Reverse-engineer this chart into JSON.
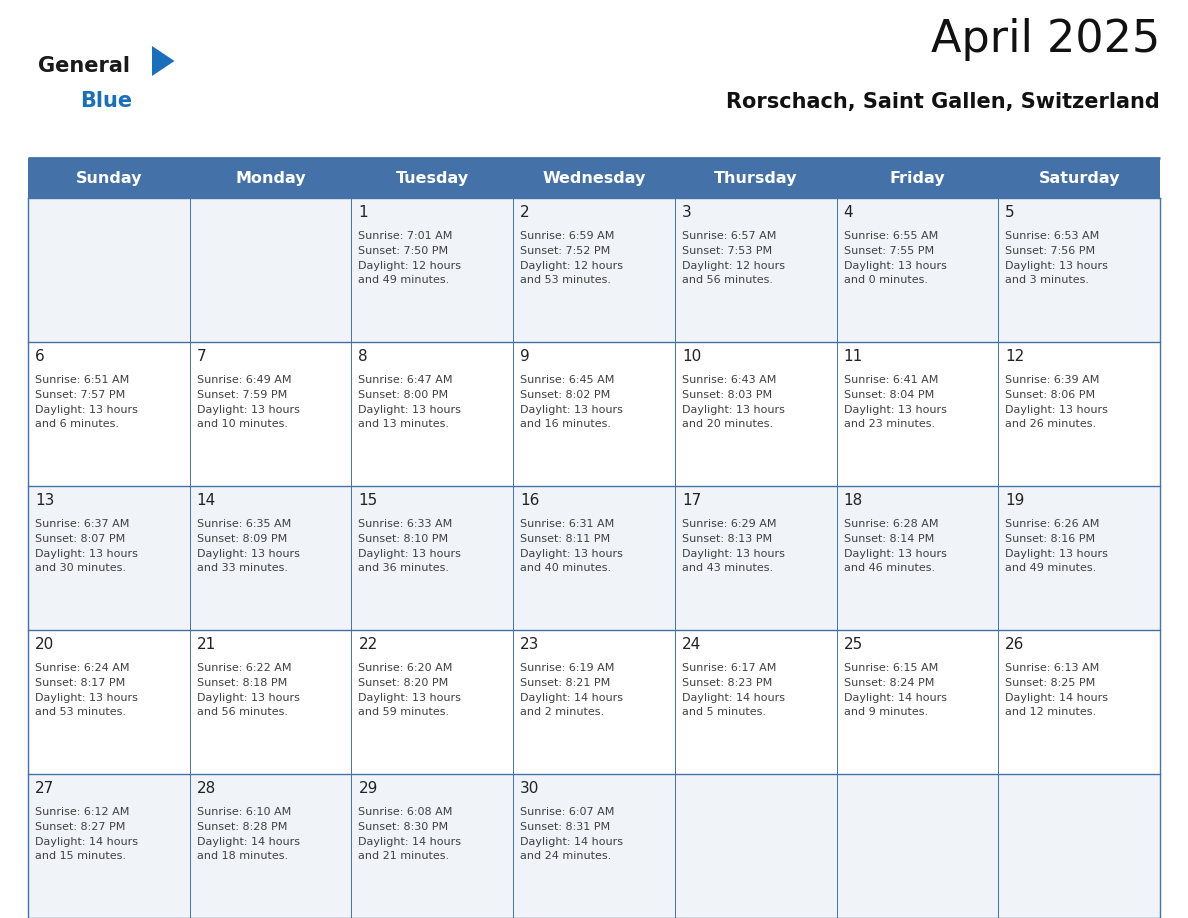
{
  "title": "April 2025",
  "subtitle": "Rorschach, Saint Gallen, Switzerland",
  "days_of_week": [
    "Sunday",
    "Monday",
    "Tuesday",
    "Wednesday",
    "Thursday",
    "Friday",
    "Saturday"
  ],
  "header_bg": "#4472a8",
  "header_text": "#ffffff",
  "cell_bg_odd": "#f0f4f8",
  "cell_bg_even": "#ffffff",
  "border_color": "#4472a8",
  "text_color": "#404040",
  "day_num_color": "#222222",
  "calendar": [
    [
      {
        "day": "",
        "sunrise": "",
        "sunset": "",
        "daylight_h": "",
        "daylight_m": ""
      },
      {
        "day": "",
        "sunrise": "",
        "sunset": "",
        "daylight_h": "",
        "daylight_m": ""
      },
      {
        "day": "1",
        "sunrise": "7:01 AM",
        "sunset": "7:50 PM",
        "daylight_h": "12",
        "daylight_m": "49"
      },
      {
        "day": "2",
        "sunrise": "6:59 AM",
        "sunset": "7:52 PM",
        "daylight_h": "12",
        "daylight_m": "53"
      },
      {
        "day": "3",
        "sunrise": "6:57 AM",
        "sunset": "7:53 PM",
        "daylight_h": "12",
        "daylight_m": "56"
      },
      {
        "day": "4",
        "sunrise": "6:55 AM",
        "sunset": "7:55 PM",
        "daylight_h": "13",
        "daylight_m": "0"
      },
      {
        "day": "5",
        "sunrise": "6:53 AM",
        "sunset": "7:56 PM",
        "daylight_h": "13",
        "daylight_m": "3"
      }
    ],
    [
      {
        "day": "6",
        "sunrise": "6:51 AM",
        "sunset": "7:57 PM",
        "daylight_h": "13",
        "daylight_m": "6"
      },
      {
        "day": "7",
        "sunrise": "6:49 AM",
        "sunset": "7:59 PM",
        "daylight_h": "13",
        "daylight_m": "10"
      },
      {
        "day": "8",
        "sunrise": "6:47 AM",
        "sunset": "8:00 PM",
        "daylight_h": "13",
        "daylight_m": "13"
      },
      {
        "day": "9",
        "sunrise": "6:45 AM",
        "sunset": "8:02 PM",
        "daylight_h": "13",
        "daylight_m": "16"
      },
      {
        "day": "10",
        "sunrise": "6:43 AM",
        "sunset": "8:03 PM",
        "daylight_h": "13",
        "daylight_m": "20"
      },
      {
        "day": "11",
        "sunrise": "6:41 AM",
        "sunset": "8:04 PM",
        "daylight_h": "13",
        "daylight_m": "23"
      },
      {
        "day": "12",
        "sunrise": "6:39 AM",
        "sunset": "8:06 PM",
        "daylight_h": "13",
        "daylight_m": "26"
      }
    ],
    [
      {
        "day": "13",
        "sunrise": "6:37 AM",
        "sunset": "8:07 PM",
        "daylight_h": "13",
        "daylight_m": "30"
      },
      {
        "day": "14",
        "sunrise": "6:35 AM",
        "sunset": "8:09 PM",
        "daylight_h": "13",
        "daylight_m": "33"
      },
      {
        "day": "15",
        "sunrise": "6:33 AM",
        "sunset": "8:10 PM",
        "daylight_h": "13",
        "daylight_m": "36"
      },
      {
        "day": "16",
        "sunrise": "6:31 AM",
        "sunset": "8:11 PM",
        "daylight_h": "13",
        "daylight_m": "40"
      },
      {
        "day": "17",
        "sunrise": "6:29 AM",
        "sunset": "8:13 PM",
        "daylight_h": "13",
        "daylight_m": "43"
      },
      {
        "day": "18",
        "sunrise": "6:28 AM",
        "sunset": "8:14 PM",
        "daylight_h": "13",
        "daylight_m": "46"
      },
      {
        "day": "19",
        "sunrise": "6:26 AM",
        "sunset": "8:16 PM",
        "daylight_h": "13",
        "daylight_m": "49"
      }
    ],
    [
      {
        "day": "20",
        "sunrise": "6:24 AM",
        "sunset": "8:17 PM",
        "daylight_h": "13",
        "daylight_m": "53"
      },
      {
        "day": "21",
        "sunrise": "6:22 AM",
        "sunset": "8:18 PM",
        "daylight_h": "13",
        "daylight_m": "56"
      },
      {
        "day": "22",
        "sunrise": "6:20 AM",
        "sunset": "8:20 PM",
        "daylight_h": "13",
        "daylight_m": "59"
      },
      {
        "day": "23",
        "sunrise": "6:19 AM",
        "sunset": "8:21 PM",
        "daylight_h": "14",
        "daylight_m": "2"
      },
      {
        "day": "24",
        "sunrise": "6:17 AM",
        "sunset": "8:23 PM",
        "daylight_h": "14",
        "daylight_m": "5"
      },
      {
        "day": "25",
        "sunrise": "6:15 AM",
        "sunset": "8:24 PM",
        "daylight_h": "14",
        "daylight_m": "9"
      },
      {
        "day": "26",
        "sunrise": "6:13 AM",
        "sunset": "8:25 PM",
        "daylight_h": "14",
        "daylight_m": "12"
      }
    ],
    [
      {
        "day": "27",
        "sunrise": "6:12 AM",
        "sunset": "8:27 PM",
        "daylight_h": "14",
        "daylight_m": "15"
      },
      {
        "day": "28",
        "sunrise": "6:10 AM",
        "sunset": "8:28 PM",
        "daylight_h": "14",
        "daylight_m": "18"
      },
      {
        "day": "29",
        "sunrise": "6:08 AM",
        "sunset": "8:30 PM",
        "daylight_h": "14",
        "daylight_m": "21"
      },
      {
        "day": "30",
        "sunrise": "6:07 AM",
        "sunset": "8:31 PM",
        "daylight_h": "14",
        "daylight_m": "24"
      },
      {
        "day": "",
        "sunrise": "",
        "sunset": "",
        "daylight_h": "",
        "daylight_m": ""
      },
      {
        "day": "",
        "sunrise": "",
        "sunset": "",
        "daylight_h": "",
        "daylight_m": ""
      },
      {
        "day": "",
        "sunrise": "",
        "sunset": "",
        "daylight_h": "",
        "daylight_m": ""
      }
    ]
  ],
  "logo_general_color": "#1a1a1a",
  "logo_blue_color": "#1a6fbb",
  "logo_triangle_color": "#1a6fbb"
}
